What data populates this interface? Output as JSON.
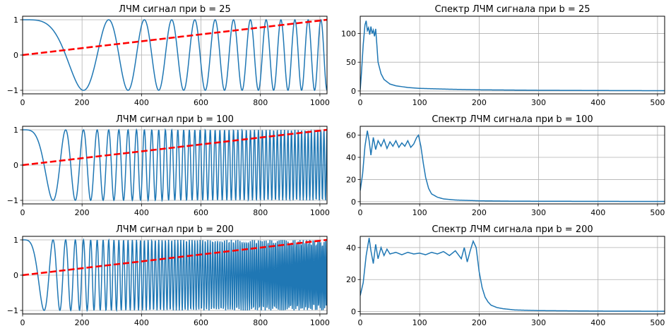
{
  "chart_data": [
    {
      "type": "line",
      "title": "ЛЧМ сигнал при b = 25",
      "b": 25,
      "xlim": [
        0,
        1024
      ],
      "ylim": [
        -1.1,
        1.1
      ],
      "xticks": [
        0,
        200,
        400,
        600,
        800,
        1000
      ],
      "yticks": [
        -1,
        0,
        1
      ],
      "grid": true,
      "series": [
        {
          "kind": "chirp",
          "formula": "cos(pi*b*n^2/N^2)",
          "N": 1024,
          "color": "#1f77b4"
        },
        {
          "kind": "linear",
          "x": [
            0,
            1024
          ],
          "y": [
            0,
            1
          ],
          "style": "dashed",
          "color": "#ff0000"
        }
      ]
    },
    {
      "type": "line",
      "title": "Спектр ЛЧМ сигнала при b = 25",
      "b": 25,
      "xlim": [
        0,
        512
      ],
      "ylim": [
        -5,
        130
      ],
      "xticks": [
        0,
        100,
        200,
        300,
        400,
        500
      ],
      "yticks": [
        0,
        50,
        100
      ],
      "grid": true,
      "series": [
        {
          "kind": "spectrum",
          "x": [
            0,
            2,
            5,
            8,
            10,
            12,
            14,
            16,
            18,
            20,
            22,
            24,
            26,
            28,
            30,
            35,
            40,
            50,
            60,
            80,
            100,
            150,
            200,
            300,
            400,
            512
          ],
          "y": [
            2,
            30,
            80,
            115,
            122,
            105,
            110,
            98,
            112,
            100,
            106,
            95,
            108,
            80,
            50,
            30,
            20,
            12,
            9,
            6,
            4.5,
            3,
            2,
            1.2,
            0.8,
            0.5
          ],
          "color": "#1f77b4"
        }
      ]
    },
    {
      "type": "line",
      "title": "ЛЧМ сигнал при b = 100",
      "b": 100,
      "xlim": [
        0,
        1024
      ],
      "ylim": [
        -1.1,
        1.1
      ],
      "xticks": [
        0,
        200,
        400,
        600,
        800,
        1000
      ],
      "yticks": [
        -1,
        0,
        1
      ],
      "grid": true,
      "series": [
        {
          "kind": "chirp",
          "formula": "cos(pi*b*n^2/N^2)",
          "N": 1024,
          "color": "#1f77b4"
        },
        {
          "kind": "linear",
          "x": [
            0,
            1024
          ],
          "y": [
            0,
            1
          ],
          "style": "dashed",
          "color": "#ff0000"
        }
      ]
    },
    {
      "type": "line",
      "title": "Спектр ЛЧМ сигнала при b = 100",
      "b": 100,
      "xlim": [
        0,
        512
      ],
      "ylim": [
        -2,
        68
      ],
      "xticks": [
        0,
        100,
        200,
        300,
        400,
        500
      ],
      "yticks": [
        0,
        20,
        40,
        60
      ],
      "grid": true,
      "series": [
        {
          "kind": "spectrum",
          "x": [
            0,
            4,
            8,
            12,
            15,
            18,
            22,
            26,
            30,
            35,
            40,
            45,
            50,
            55,
            60,
            65,
            70,
            75,
            80,
            85,
            90,
            95,
            98,
            102,
            106,
            110,
            115,
            120,
            130,
            140,
            160,
            200,
            250,
            300,
            400,
            512
          ],
          "y": [
            10,
            25,
            50,
            64,
            55,
            42,
            58,
            47,
            55,
            50,
            56,
            48,
            54,
            50,
            55,
            49,
            53,
            50,
            55,
            49,
            52,
            58,
            60,
            50,
            35,
            22,
            12,
            7,
            4,
            2.5,
            1.5,
            0.8,
            0.5,
            0.4,
            0.3,
            0.2
          ],
          "color": "#1f77b4"
        }
      ]
    },
    {
      "type": "line",
      "title": "ЛЧМ сигнал при b = 200",
      "b": 200,
      "xlim": [
        0,
        1024
      ],
      "ylim": [
        -1.1,
        1.1
      ],
      "xticks": [
        0,
        200,
        400,
        600,
        800,
        1000
      ],
      "yticks": [
        -1,
        0,
        1
      ],
      "grid": true,
      "series": [
        {
          "kind": "chirp",
          "formula": "cos(pi*b*n^2/N^2)",
          "N": 1024,
          "color": "#1f77b4"
        },
        {
          "kind": "linear",
          "x": [
            0,
            1024
          ],
          "y": [
            0,
            1
          ],
          "style": "dashed",
          "color": "#ff0000"
        }
      ]
    },
    {
      "type": "line",
      "title": "Спектр ЛЧМ сигнала при b = 200",
      "b": 200,
      "xlim": [
        0,
        512
      ],
      "ylim": [
        -1.5,
        47
      ],
      "xticks": [
        0,
        100,
        200,
        300,
        400,
        500
      ],
      "yticks": [
        0,
        20,
        40
      ],
      "grid": true,
      "series": [
        {
          "kind": "spectrum",
          "x": [
            0,
            5,
            10,
            15,
            18,
            22,
            26,
            30,
            35,
            40,
            45,
            50,
            60,
            70,
            80,
            90,
            100,
            110,
            120,
            130,
            140,
            150,
            160,
            170,
            175,
            180,
            185,
            190,
            195,
            200,
            205,
            210,
            215,
            220,
            230,
            240,
            260,
            300,
            400,
            512
          ],
          "y": [
            10,
            18,
            35,
            46,
            38,
            30,
            42,
            33,
            40,
            35,
            39,
            36,
            37,
            35.5,
            37,
            36,
            36.5,
            35.5,
            37,
            36,
            37.5,
            35,
            38,
            33,
            40,
            31,
            38,
            44,
            40,
            25,
            15,
            9,
            6,
            4,
            2.5,
            1.8,
            1.0,
            0.6,
            0.3,
            0.2
          ],
          "color": "#1f77b4"
        }
      ]
    }
  ]
}
